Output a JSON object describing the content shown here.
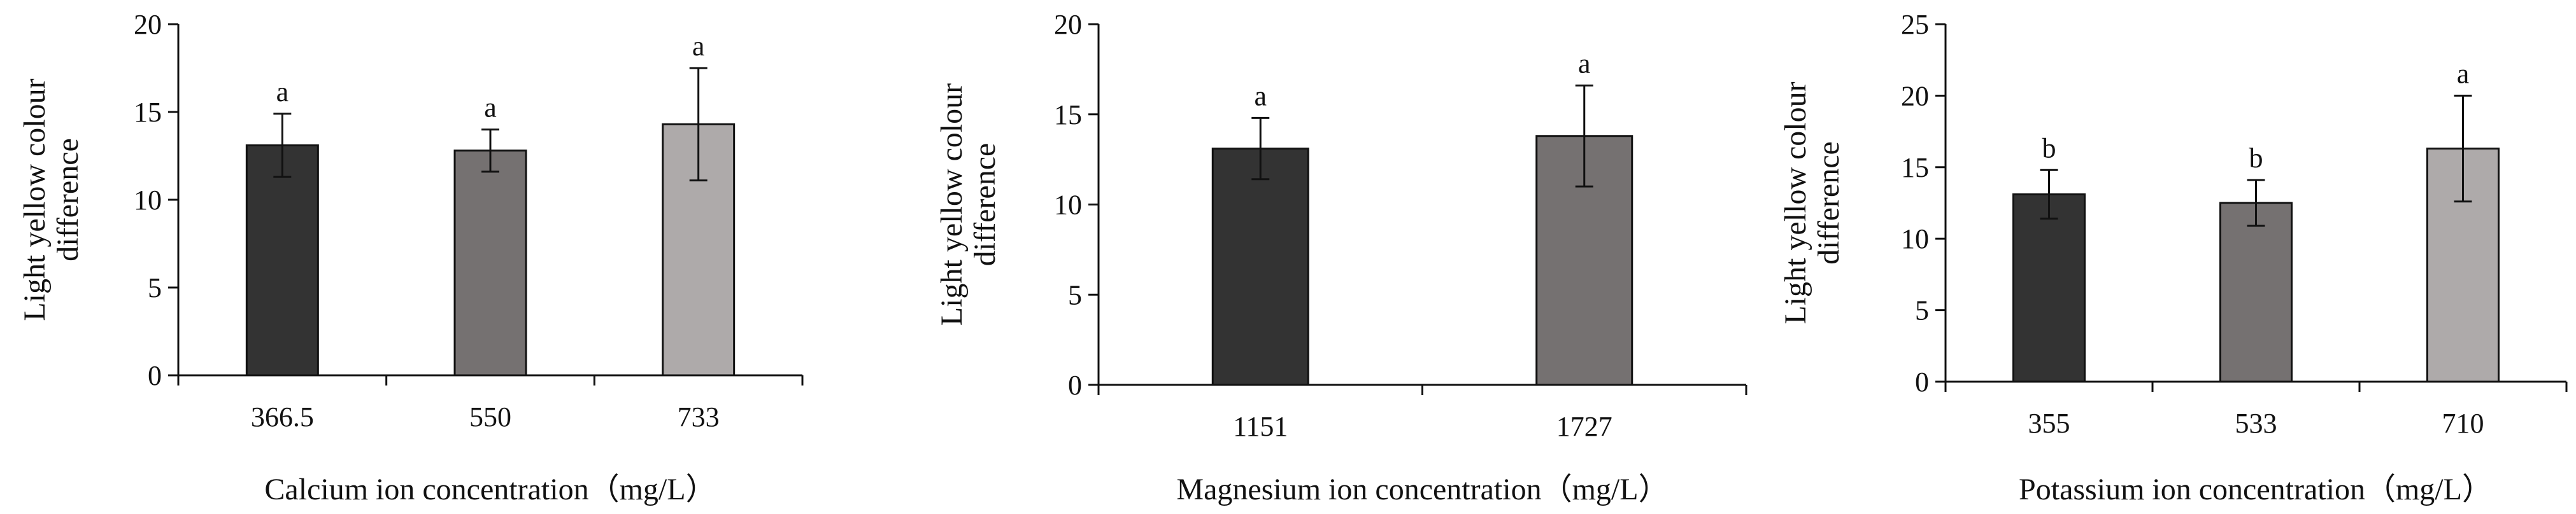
{
  "chart_data": [
    {
      "type": "bar",
      "title": "",
      "xlabel": "Calcium ion concentration（mg/L）",
      "ylabel": [
        "Light yellow colour",
        "difference"
      ],
      "categories": [
        "366.5",
        "550",
        "733"
      ],
      "values": [
        13.1,
        12.8,
        14.3
      ],
      "errors": [
        1.8,
        1.2,
        3.2
      ],
      "significance": [
        "a",
        "a",
        "a"
      ],
      "colors": [
        "#333333",
        "#757171",
        "#AEAAAA"
      ],
      "ylim": [
        0,
        20
      ],
      "yticks": [
        "0",
        "5",
        "10",
        "15",
        "20"
      ],
      "grid": false
    },
    {
      "type": "bar",
      "title": "",
      "xlabel": "Magnesium ion concentration（mg/L）",
      "ylabel": [
        "Light yellow colour",
        "difference"
      ],
      "categories": [
        "1151",
        "1727"
      ],
      "values": [
        13.1,
        13.8
      ],
      "errors": [
        1.7,
        2.8
      ],
      "significance": [
        "a",
        "a"
      ],
      "colors": [
        "#333333",
        "#757171"
      ],
      "ylim": [
        0,
        20
      ],
      "yticks": [
        "0",
        "5",
        "10",
        "15",
        "20"
      ],
      "grid": false
    },
    {
      "type": "bar",
      "title": "",
      "xlabel": "Potassium ion concentration（mg/L）",
      "ylabel": [
        "Light yellow colour",
        "difference"
      ],
      "categories": [
        "355",
        "533",
        "710"
      ],
      "values": [
        13.1,
        12.5,
        16.3
      ],
      "errors": [
        1.7,
        1.6,
        3.7
      ],
      "significance": [
        "b",
        "b",
        "a"
      ],
      "colors": [
        "#333333",
        "#757171",
        "#AEAAAA"
      ],
      "ylim": [
        0,
        25
      ],
      "yticks": [
        "0",
        "5",
        "10",
        "15",
        "20",
        "25"
      ],
      "grid": false
    }
  ]
}
